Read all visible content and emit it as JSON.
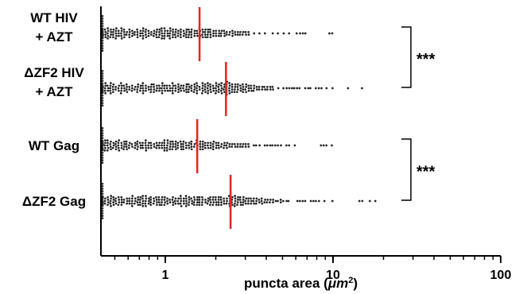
{
  "chart_data": {
    "type": "scatter",
    "xscale": "log",
    "xlim": [
      0.4,
      100
    ],
    "xticks": [
      1,
      10,
      100
    ],
    "xtick_labels": [
      "1",
      "10",
      "100"
    ],
    "xlabel_prefix": "puncta area (",
    "xlabel_unit": "μm",
    "xlabel_sup": "2",
    "xlabel_suffix": ")",
    "grid": false,
    "categories": [
      {
        "lines": [
          "WT HIV",
          "+ AZT"
        ],
        "median": 1.6,
        "max": 11
      },
      {
        "lines": [
          "ΔZF2 HIV",
          "+ AZT"
        ],
        "median": 2.3,
        "max": 16
      },
      {
        "lines": [
          "WT Gag"
        ],
        "median": 1.55,
        "max": 10
      },
      {
        "lines": [
          "ΔZF2 Gag"
        ],
        "median": 2.45,
        "max": 18
      }
    ],
    "significance": [
      {
        "between": [
          0,
          1
        ],
        "label": "***"
      },
      {
        "between": [
          2,
          3
        ],
        "label": "***"
      }
    ]
  },
  "colors": {
    "points": "#222222",
    "median_line": "#e8231f",
    "axis": "#000000"
  }
}
